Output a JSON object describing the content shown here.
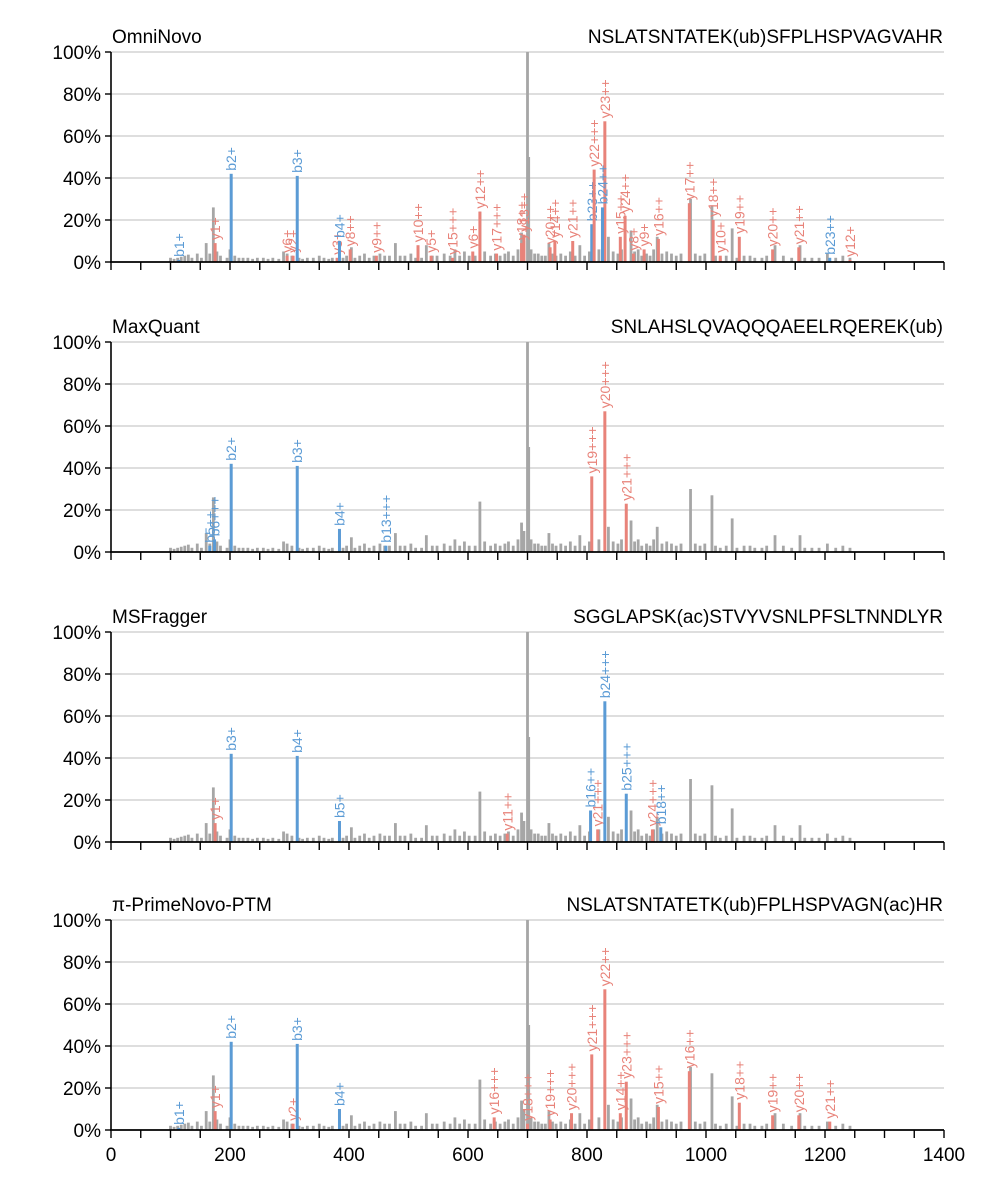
{
  "colors": {
    "b_ion": "#5b9bd5",
    "y_ion": "#e8837a",
    "unmatched": "#a6a6a6",
    "grid": "#d3d3d3",
    "axis": "#000000"
  },
  "chart_data": {
    "type": "bar",
    "x_range": [
      0,
      1400
    ],
    "y_range": [
      0,
      100
    ],
    "x_tick_labels": [
      "0",
      "200",
      "400",
      "600",
      "800",
      "1000",
      "1200",
      "1400"
    ],
    "y_tick_labels": [
      "0%",
      "20%",
      "40%",
      "60%",
      "80%",
      "100%"
    ],
    "grid": true,
    "background_peaks": [
      [
        100,
        2
      ],
      [
        106,
        1.5
      ],
      [
        112,
        2
      ],
      [
        118,
        2.5
      ],
      [
        124,
        3
      ],
      [
        130,
        3.5
      ],
      [
        136,
        2
      ],
      [
        145,
        4
      ],
      [
        152,
        2
      ],
      [
        160,
        9
      ],
      [
        166,
        4
      ],
      [
        172,
        26
      ],
      [
        178,
        5
      ],
      [
        184,
        3
      ],
      [
        195,
        2
      ],
      [
        200,
        6
      ],
      [
        208,
        3
      ],
      [
        215,
        2
      ],
      [
        222,
        2
      ],
      [
        230,
        2
      ],
      [
        238,
        1.5
      ],
      [
        246,
        2
      ],
      [
        256,
        2
      ],
      [
        264,
        1.5
      ],
      [
        272,
        2
      ],
      [
        282,
        1.5
      ],
      [
        290,
        5
      ],
      [
        296,
        4
      ],
      [
        304,
        3
      ],
      [
        316,
        2
      ],
      [
        322,
        1.5
      ],
      [
        330,
        2
      ],
      [
        340,
        2
      ],
      [
        350,
        3
      ],
      [
        358,
        2
      ],
      [
        366,
        1.5
      ],
      [
        372,
        2
      ],
      [
        390,
        2
      ],
      [
        396,
        3
      ],
      [
        404,
        7
      ],
      [
        410,
        2
      ],
      [
        418,
        3
      ],
      [
        426,
        4
      ],
      [
        434,
        2
      ],
      [
        442,
        3
      ],
      [
        452,
        4
      ],
      [
        460,
        3
      ],
      [
        468,
        3
      ],
      [
        478,
        9
      ],
      [
        486,
        3
      ],
      [
        494,
        3
      ],
      [
        504,
        4
      ],
      [
        512,
        2
      ],
      [
        522,
        2
      ],
      [
        530,
        8
      ],
      [
        540,
        3
      ],
      [
        548,
        3
      ],
      [
        560,
        4
      ],
      [
        570,
        3
      ],
      [
        578,
        6
      ],
      [
        586,
        3
      ],
      [
        594,
        5
      ],
      [
        602,
        3
      ],
      [
        612,
        3
      ],
      [
        620,
        24
      ],
      [
        628,
        5
      ],
      [
        638,
        3
      ],
      [
        646,
        4
      ],
      [
        654,
        3
      ],
      [
        662,
        4
      ],
      [
        668,
        5
      ],
      [
        676,
        3
      ],
      [
        684,
        6
      ],
      [
        690,
        14
      ],
      [
        694,
        10
      ],
      [
        700,
        100
      ],
      [
        702,
        50
      ],
      [
        706,
        6
      ],
      [
        712,
        4
      ],
      [
        718,
        4
      ],
      [
        724,
        3
      ],
      [
        730,
        3
      ],
      [
        736,
        9
      ],
      [
        742,
        4
      ],
      [
        748,
        3
      ],
      [
        756,
        4
      ],
      [
        764,
        3
      ],
      [
        772,
        5
      ],
      [
        780,
        3
      ],
      [
        788,
        8
      ],
      [
        796,
        3
      ],
      [
        804,
        5
      ],
      [
        820,
        6
      ],
      [
        836,
        12
      ],
      [
        844,
        5
      ],
      [
        852,
        4
      ],
      [
        858,
        6
      ],
      [
        874,
        15
      ],
      [
        880,
        5
      ],
      [
        886,
        6
      ],
      [
        892,
        3
      ],
      [
        900,
        4
      ],
      [
        906,
        3
      ],
      [
        912,
        6
      ],
      [
        918,
        12
      ],
      [
        926,
        4
      ],
      [
        934,
        5
      ],
      [
        942,
        4
      ],
      [
        950,
        3
      ],
      [
        958,
        4
      ],
      [
        974,
        30
      ],
      [
        982,
        4
      ],
      [
        990,
        3
      ],
      [
        998,
        4
      ],
      [
        1010,
        27
      ],
      [
        1016,
        3
      ],
      [
        1024,
        2
      ],
      [
        1034,
        3
      ],
      [
        1044,
        16
      ],
      [
        1052,
        2
      ],
      [
        1064,
        3
      ],
      [
        1074,
        3
      ],
      [
        1082,
        2
      ],
      [
        1094,
        2
      ],
      [
        1102,
        3
      ],
      [
        1116,
        8
      ],
      [
        1130,
        3
      ],
      [
        1144,
        2
      ],
      [
        1158,
        8
      ],
      [
        1166,
        2
      ],
      [
        1178,
        2
      ],
      [
        1190,
        2
      ],
      [
        1204,
        4
      ],
      [
        1218,
        2
      ],
      [
        1230,
        3
      ],
      [
        1242,
        2
      ]
    ],
    "panels": [
      {
        "method": "OmniNovo",
        "peptide": "NSLATSNTATEK(ub)SFPLHSPVAGVAHR",
        "ions": [
          {
            "label": "b1+",
            "type": "b",
            "x": 114,
            "y": 1
          },
          {
            "label": "y1+",
            "type": "y",
            "x": 175,
            "y": 9
          },
          {
            "label": "b2+",
            "type": "b",
            "x": 202,
            "y": 42
          },
          {
            "label": "y6+",
            "type": "y",
            "x": 296,
            "y": 3
          },
          {
            "label": "y2+",
            "type": "y",
            "x": 306,
            "y": 3
          },
          {
            "label": "b3+",
            "type": "b",
            "x": 313,
            "y": 41
          },
          {
            "label": "y3+",
            "type": "y",
            "x": 380,
            "y": 2
          },
          {
            "label": "b4+",
            "type": "b",
            "x": 384,
            "y": 10
          },
          {
            "label": "y8++",
            "type": "y",
            "x": 402,
            "y": 6
          },
          {
            "label": "y9++",
            "type": "y",
            "x": 446,
            "y": 3
          },
          {
            "label": "y10++",
            "type": "y",
            "x": 516,
            "y": 8
          },
          {
            "label": "y5+",
            "type": "y",
            "x": 538,
            "y": 3
          },
          {
            "label": "y15+++",
            "type": "y",
            "x": 574,
            "y": 2
          },
          {
            "label": "y6+",
            "type": "y",
            "x": 608,
            "y": 5
          },
          {
            "label": "y12++",
            "type": "y",
            "x": 620,
            "y": 24
          },
          {
            "label": "y17+++",
            "type": "y",
            "x": 648,
            "y": 4
          },
          {
            "label": "y18++",
            "type": "y",
            "x": 690,
            "y": 9
          },
          {
            "label": "y13++",
            "type": "y",
            "x": 694,
            "y": 13
          },
          {
            "label": "y20++",
            "type": "y",
            "x": 738,
            "y": 7
          },
          {
            "label": "y14++",
            "type": "y",
            "x": 746,
            "y": 10
          },
          {
            "label": "y21++",
            "type": "y",
            "x": 776,
            "y": 10
          },
          {
            "label": "b23++",
            "type": "b",
            "x": 808,
            "y": 18
          },
          {
            "label": "y22+++",
            "type": "y",
            "x": 812,
            "y": 44
          },
          {
            "label": "y23++",
            "type": "y",
            "x": 830,
            "y": 67
          },
          {
            "label": "b24++",
            "type": "b",
            "x": 826,
            "y": 26
          },
          {
            "label": "y15++",
            "type": "y",
            "x": 856,
            "y": 12
          },
          {
            "label": "y24++",
            "type": "y",
            "x": 864,
            "y": 22
          },
          {
            "label": "y8+",
            "type": "y",
            "x": 878,
            "y": 4
          },
          {
            "label": "y9+",
            "type": "y",
            "x": 896,
            "y": 6
          },
          {
            "label": "y16++",
            "type": "y",
            "x": 920,
            "y": 11
          },
          {
            "label": "y17++",
            "type": "y",
            "x": 972,
            "y": 28
          },
          {
            "label": "y18++",
            "type": "y",
            "x": 1012,
            "y": 20
          },
          {
            "label": "y10+",
            "type": "y",
            "x": 1024,
            "y": 3
          },
          {
            "label": "y19++",
            "type": "y",
            "x": 1056,
            "y": 12
          },
          {
            "label": "y20++",
            "type": "y",
            "x": 1112,
            "y": 6
          },
          {
            "label": "y21++",
            "type": "y",
            "x": 1156,
            "y": 7
          },
          {
            "label": "b23++",
            "type": "b",
            "x": 1208,
            "y": 2
          },
          {
            "label": "y12+",
            "type": "y",
            "x": 1242,
            "y": 1
          }
        ]
      },
      {
        "method": "MaxQuant",
        "peptide": "SNLAHSLQVAQQQAEELRQEREK(ub)",
        "ions": [
          {
            "label": "b5++",
            "type": "b",
            "x": 166,
            "y": 3
          },
          {
            "label": "b6+++",
            "type": "b",
            "x": 174,
            "y": 6
          },
          {
            "label": "b2+",
            "type": "b",
            "x": 202,
            "y": 42
          },
          {
            "label": "b3+",
            "type": "b",
            "x": 313,
            "y": 41
          },
          {
            "label": "b4+",
            "type": "b",
            "x": 384,
            "y": 11
          },
          {
            "label": "b13+++",
            "type": "b",
            "x": 462,
            "y": 3
          },
          {
            "label": "y19+++",
            "type": "y",
            "x": 808,
            "y": 36
          },
          {
            "label": "y20+++",
            "type": "y",
            "x": 830,
            "y": 67
          },
          {
            "label": "y21+++",
            "type": "y",
            "x": 866,
            "y": 23
          }
        ]
      },
      {
        "method": "MSFragger",
        "peptide": "SGGLAPSK(ac)STVYVSNLPFSLTNNDLYR",
        "ions": [
          {
            "label": "y1+",
            "type": "y",
            "x": 175,
            "y": 9
          },
          {
            "label": "b3+",
            "type": "b",
            "x": 202,
            "y": 42
          },
          {
            "label": "b4+",
            "type": "b",
            "x": 313,
            "y": 41
          },
          {
            "label": "b5+",
            "type": "b",
            "x": 384,
            "y": 10
          },
          {
            "label": "y11++",
            "type": "y",
            "x": 666,
            "y": 4
          },
          {
            "label": "b16++",
            "type": "b",
            "x": 806,
            "y": 15
          },
          {
            "label": "y21+++",
            "type": "y",
            "x": 818,
            "y": 6
          },
          {
            "label": "b24+++",
            "type": "b",
            "x": 830,
            "y": 67
          },
          {
            "label": "b25+++",
            "type": "b",
            "x": 866,
            "y": 23
          },
          {
            "label": "y24+++",
            "type": "y",
            "x": 910,
            "y": 6
          },
          {
            "label": "b18++",
            "type": "b",
            "x": 924,
            "y": 7
          }
        ]
      },
      {
        "method": "π-PrimeNovo-PTM",
        "peptide": "NSLATSNTATETK(ub)FPLHSPVAGN(ac)HR",
        "ions": [
          {
            "label": "b1+",
            "type": "b",
            "x": 114,
            "y": 1
          },
          {
            "label": "y1+",
            "type": "y",
            "x": 175,
            "y": 9
          },
          {
            "label": "b2+",
            "type": "b",
            "x": 202,
            "y": 42
          },
          {
            "label": "y2+",
            "type": "y",
            "x": 306,
            "y": 3
          },
          {
            "label": "b3+",
            "type": "b",
            "x": 313,
            "y": 41
          },
          {
            "label": "b4+",
            "type": "b",
            "x": 384,
            "y": 10
          },
          {
            "label": "y16+++",
            "type": "y",
            "x": 644,
            "y": 6
          },
          {
            "label": "y18+++",
            "type": "y",
            "x": 700,
            "y": 3
          },
          {
            "label": "y19+++",
            "type": "y",
            "x": 738,
            "y": 5
          },
          {
            "label": "y20+++",
            "type": "y",
            "x": 774,
            "y": 8
          },
          {
            "label": "y21+++",
            "type": "y",
            "x": 808,
            "y": 36
          },
          {
            "label": "y22++",
            "type": "y",
            "x": 830,
            "y": 67
          },
          {
            "label": "y14++",
            "type": "y",
            "x": 856,
            "y": 8
          },
          {
            "label": "y23+++",
            "type": "y",
            "x": 866,
            "y": 23
          },
          {
            "label": "y15++",
            "type": "y",
            "x": 920,
            "y": 11
          },
          {
            "label": "y16++",
            "type": "y",
            "x": 972,
            "y": 28
          },
          {
            "label": "y18++",
            "type": "y",
            "x": 1056,
            "y": 13
          },
          {
            "label": "y19++",
            "type": "y",
            "x": 1112,
            "y": 7
          },
          {
            "label": "y20++",
            "type": "y",
            "x": 1156,
            "y": 7
          },
          {
            "label": "y21++",
            "type": "y",
            "x": 1208,
            "y": 4
          }
        ]
      }
    ]
  }
}
